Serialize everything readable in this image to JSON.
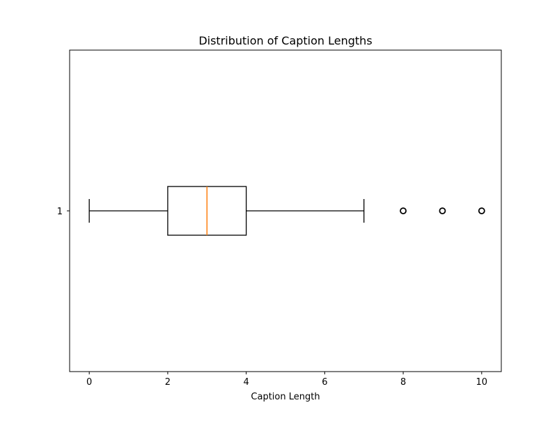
{
  "chart_data": {
    "type": "boxplot",
    "orientation": "horizontal",
    "title": "Distribution of Caption Lengths",
    "xlabel": "Caption Length",
    "ylabel": "",
    "xlim": [
      -0.5,
      10.5
    ],
    "x_ticks": [
      0,
      2,
      4,
      6,
      8,
      10
    ],
    "x_tick_labels": [
      "0",
      "2",
      "4",
      "6",
      "8",
      "10"
    ],
    "y_ticks": [
      1
    ],
    "y_tick_labels": [
      "1"
    ],
    "grid": false,
    "box": {
      "position": 1,
      "whisker_low": 0,
      "q1": 2,
      "median": 3,
      "q3": 4,
      "whisker_high": 7,
      "outliers": [
        8,
        9,
        10
      ]
    },
    "colors": {
      "box": "#000000",
      "median": "#ff7f0e",
      "axes": "#000000",
      "background": "#ffffff"
    }
  }
}
